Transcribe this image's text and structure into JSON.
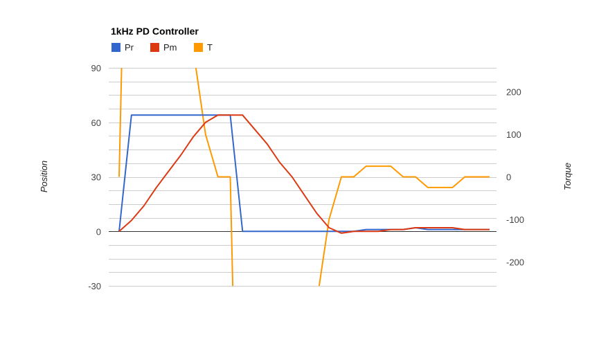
{
  "chart_data": {
    "type": "line",
    "title": "1kHz PD Controller",
    "x": [
      1,
      2,
      3,
      4,
      5,
      6,
      7,
      8,
      9,
      10,
      11,
      12,
      13,
      14,
      15,
      16,
      17,
      18,
      19,
      20,
      21,
      22,
      23,
      24,
      25,
      26,
      27,
      28,
      29,
      30,
      31
    ],
    "series": [
      {
        "name": "Pr",
        "axis": "left",
        "color": "#3366cc",
        "values": [
          0,
          64,
          64,
          64,
          64,
          64,
          64,
          64,
          64,
          64,
          0,
          0,
          0,
          0,
          0,
          0,
          0,
          0,
          0,
          0,
          1,
          1,
          1,
          1,
          2,
          1,
          1,
          1,
          1,
          1,
          1
        ]
      },
      {
        "name": "Pm",
        "axis": "left",
        "color": "#dc3912",
        "values": [
          0,
          6,
          14,
          24,
          33,
          42,
          52,
          60,
          64,
          64,
          64,
          56,
          48,
          38,
          30,
          20,
          10,
          2,
          -1,
          0,
          0,
          0,
          1,
          1,
          2,
          2,
          2,
          2,
          1,
          1,
          1
        ]
      },
      {
        "name": "T",
        "axis": "right",
        "color": "#ff9900",
        "values": [
          0,
          null,
          null,
          null,
          null,
          null,
          null,
          100,
          0,
          0,
          null,
          null,
          null,
          null,
          null,
          null,
          null,
          null,
          0,
          0,
          25,
          25,
          25,
          0,
          0,
          -25,
          -25,
          -25,
          0,
          0,
          0
        ],
        "segments": [
          [
            [
              1,
              0
            ],
            [
              1.2,
              256
            ]
          ],
          [
            [
              7.22,
              256
            ],
            [
              8,
              100
            ],
            [
              9,
              0
            ],
            [
              10,
              0
            ],
            [
              10.2,
              -256
            ]
          ],
          [
            [
              17.2,
              -256
            ],
            [
              18,
              -100
            ],
            [
              19,
              0
            ],
            [
              20,
              0
            ],
            [
              21,
              25
            ],
            [
              22,
              25
            ],
            [
              23,
              25
            ],
            [
              24,
              0
            ],
            [
              25,
              0
            ],
            [
              26,
              -25
            ],
            [
              27,
              -25
            ],
            [
              28,
              -25
            ],
            [
              29,
              0
            ],
            [
              30,
              0
            ],
            [
              31,
              0
            ]
          ]
        ]
      }
    ],
    "y_left": {
      "label": "Position",
      "ylim": [
        -30,
        90
      ],
      "ticks": [
        "90",
        "60",
        "30",
        "0",
        "-30"
      ],
      "tick_values": [
        90,
        60,
        30,
        0,
        -30
      ]
    },
    "y_right": {
      "label": "Torque",
      "ylim": [
        -256,
        256
      ],
      "ticks": [
        "200",
        "100",
        "0",
        "-100",
        "-200"
      ],
      "tick_values": [
        200,
        100,
        0,
        -100,
        -200
      ]
    },
    "grid": true,
    "legend": "top-left"
  }
}
